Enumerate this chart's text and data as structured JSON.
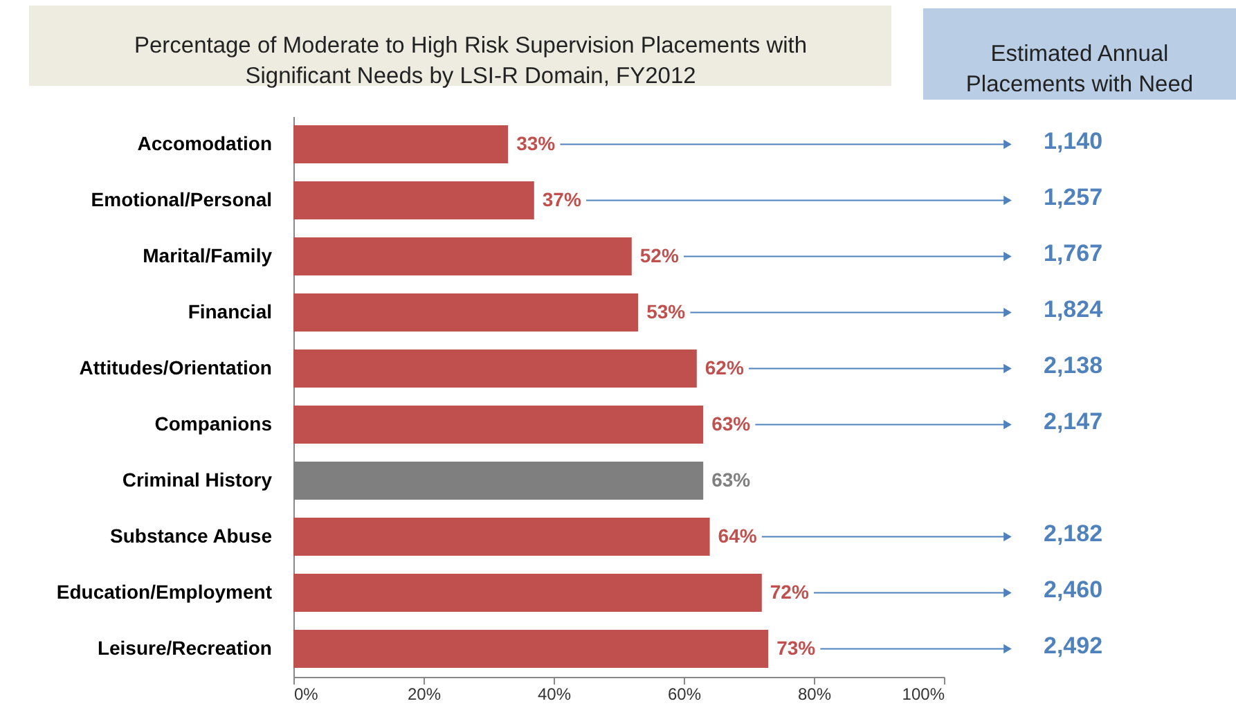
{
  "chart_data": {
    "type": "bar",
    "orientation": "horizontal",
    "title": "Percentage of Moderate to High Risk Supervision Placements with\nSignificant Needs by LSI-R Domain, FY2012",
    "categories": [
      "Accomodation",
      "Emotional/Personal",
      "Marital/Family",
      "Financial",
      "Attitudes/Orientation",
      "Companions",
      "Criminal History",
      "Substance Abuse",
      "Education/Employment",
      "Leisure/Recreation"
    ],
    "values": [
      33,
      37,
      52,
      53,
      62,
      63,
      63,
      64,
      72,
      73
    ],
    "colors": [
      "#c0504d",
      "#c0504d",
      "#c0504d",
      "#c0504d",
      "#c0504d",
      "#c0504d",
      "#7f7f7f",
      "#c0504d",
      "#c0504d",
      "#c0504d"
    ],
    "value_labels": [
      "33%",
      "37%",
      "52%",
      "53%",
      "62%",
      "63%",
      "63%",
      "64%",
      "72%",
      "73%"
    ],
    "xlim": [
      0,
      100
    ],
    "xticks": [
      {
        "value": 0,
        "label": "0%"
      },
      {
        "value": 20,
        "label": "20%"
      },
      {
        "value": 40,
        "label": "40%"
      },
      {
        "value": 60,
        "label": "60%"
      },
      {
        "value": 80,
        "label": "80%"
      },
      {
        "value": 100,
        "label": "100%"
      }
    ],
    "grid": false,
    "annotations": [
      "Estimated Annual\nPlacements with Need",
      "1,140",
      "1,257",
      "1,767",
      "1,824",
      "2,138",
      "2,147",
      "2,182",
      "2,460",
      "2,492"
    ]
  }
}
